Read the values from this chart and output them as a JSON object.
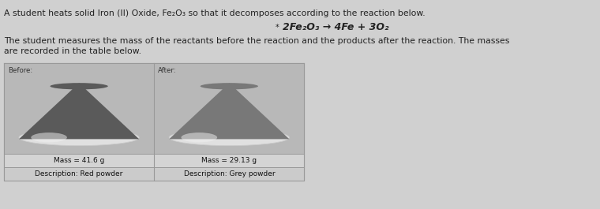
{
  "title_line1": "A student heats solid Iron (II) Oxide, Fe₂O₃ so that it decomposes according to the reaction below.",
  "reaction": "2Fe₂O₃ → 4Fe + 3O₂",
  "title_line2": "The student measures the mass of the reactants before the reaction and the products after the reaction. The masses",
  "title_line3": "are recorded in the table below.",
  "before_label": "Before:",
  "after_label": "After:",
  "before_mass": "Mass = 41.6 g",
  "before_desc": "Description: Red powder",
  "after_mass": "Mass = 29.13 g",
  "after_desc": "Description: Grey powder",
  "bg_color": "#d0d0d0",
  "main_bg": "#e8e8e8",
  "text_color": "#222222",
  "border_color": "#999999",
  "cell_bg": "#c8c8c8",
  "row_bg1": "#d4d4d4",
  "row_bg2": "#cbcbcb",
  "right_panel_color": "#b0b4b8",
  "table_outer_bg": "#d8d8d8"
}
